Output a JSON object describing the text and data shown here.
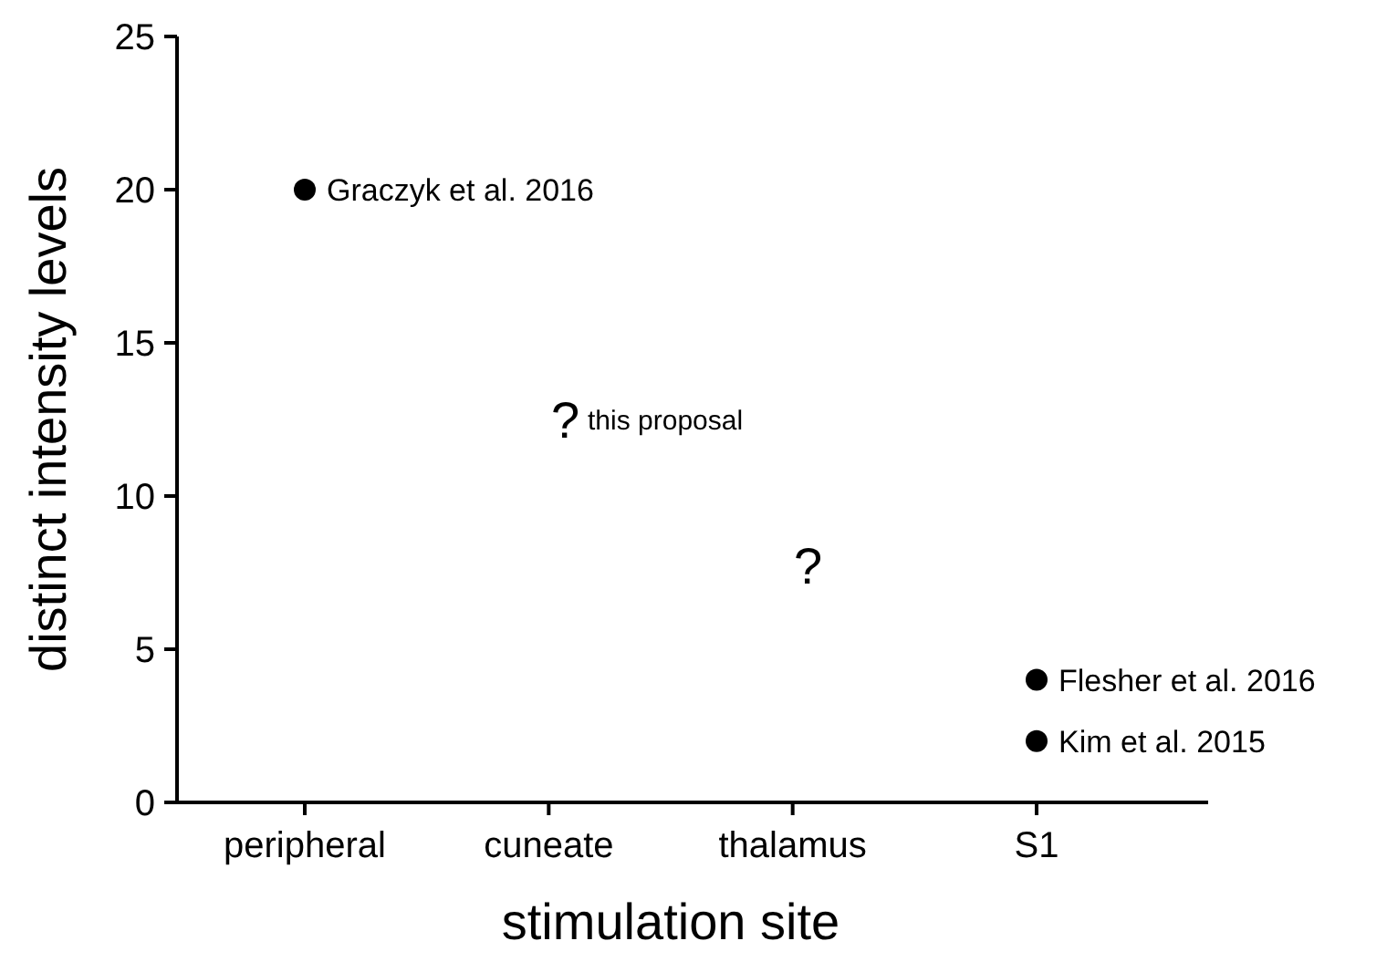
{
  "chart_data": {
    "type": "scatter",
    "xlabel": "stimulation site",
    "ylabel": "distinct intensity levels",
    "categories": [
      "peripheral",
      "cuneate",
      "thalamus",
      "S1"
    ],
    "series": [
      {
        "x": [
          "peripheral",
          "S1",
          "S1"
        ],
        "values": [
          20,
          4,
          2
        ],
        "color": "#000000"
      }
    ],
    "ylim": [
      0,
      25
    ],
    "yticks": [
      0,
      5,
      10,
      15,
      20,
      25
    ],
    "grid": false,
    "marker": "circle",
    "annotations": [
      {
        "text": "Graczyk et al. 2016",
        "x": "peripheral",
        "y": 20
      },
      "?",
      "this proposal",
      "?",
      {
        "text": "Flesher et al. 2016",
        "x": "S1",
        "y": 4
      },
      {
        "text": "Kim et al. 2015",
        "x": "S1",
        "y": 2
      }
    ]
  }
}
